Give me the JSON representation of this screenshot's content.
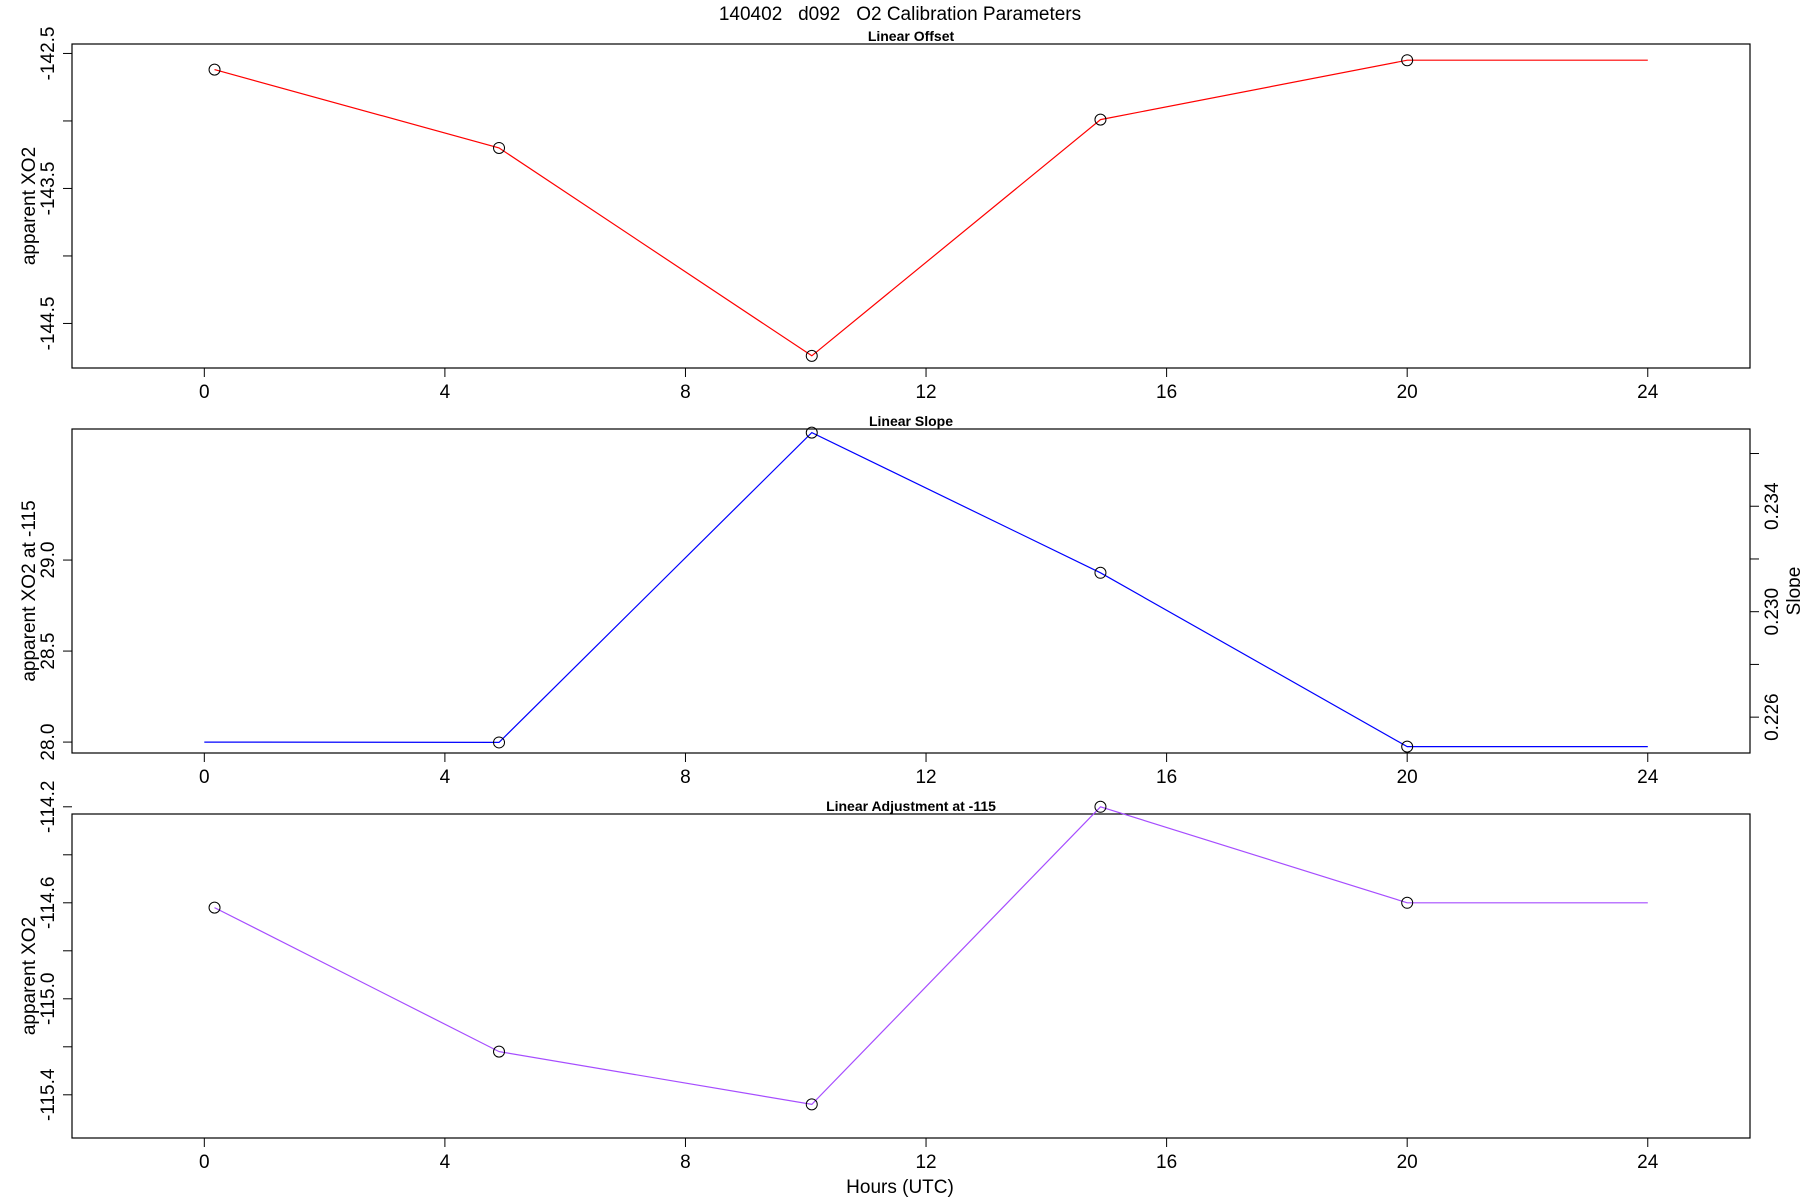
{
  "figure": {
    "title": "140402   d092   O2 Calibration Parameters",
    "xlabel": "Hours (UTC)"
  },
  "chart_data": [
    {
      "type": "line",
      "title": "Linear Offset",
      "xlabel": "",
      "ylabel": "apparent XO2",
      "xlim": [
        -2.2,
        25.7
      ],
      "ylim": [
        -144.83,
        -142.43
      ],
      "x_ticks": [
        0,
        4,
        8,
        12,
        16,
        20,
        24
      ],
      "y_ticks": [
        -142.5,
        -143.0,
        -143.5,
        -144.0,
        -144.5
      ],
      "y_tick_labels": [
        "-142.5",
        "",
        "-143.5",
        "",
        "-144.5"
      ],
      "color": "#ff0000",
      "points": [
        {
          "x": 0.17,
          "y": -142.62
        },
        {
          "x": 4.9,
          "y": -143.2
        },
        {
          "x": 10.1,
          "y": -144.74
        },
        {
          "x": 14.9,
          "y": -142.99
        },
        {
          "x": 20.0,
          "y": -142.55
        }
      ],
      "line_end": {
        "x": 24.0,
        "y": -142.55
      }
    },
    {
      "type": "line",
      "title": "Linear Slope",
      "xlabel": "",
      "ylabel": "apparent XO2 at -115",
      "y2label": "Slope",
      "xlim": [
        -2.2,
        25.7
      ],
      "ylim": [
        27.94,
        29.72
      ],
      "x_ticks": [
        0,
        4,
        8,
        12,
        16,
        20,
        24
      ],
      "y_ticks": [
        28.0,
        28.5,
        29.0
      ],
      "y_tick_labels": [
        "28.0",
        "28.5",
        "29.0"
      ],
      "y2_ticks": [
        0.226,
        0.228,
        0.23,
        0.232,
        0.234,
        0.236
      ],
      "y2_tick_labels": [
        "0.226",
        "",
        "0.230",
        "",
        "0.234",
        ""
      ],
      "y2lim": [
        0.22464,
        0.23693
      ],
      "color": "#0000ff",
      "points": [
        {
          "x": 4.9,
          "y": 27.998
        },
        {
          "x": 10.1,
          "y": 29.7
        },
        {
          "x": 14.9,
          "y": 28.93
        },
        {
          "x": 20.0,
          "y": 27.975
        }
      ],
      "line_start": {
        "x": 0.0,
        "y": 28.0
      },
      "line_end": {
        "x": 24.0,
        "y": 27.975
      }
    },
    {
      "type": "line",
      "title": "Linear Adjustment at -115",
      "xlabel": "Hours (UTC)",
      "ylabel": "apparent XO2",
      "xlim": [
        -2.2,
        25.7
      ],
      "ylim": [
        -115.58,
        -114.23
      ],
      "x_ticks": [
        0,
        4,
        8,
        12,
        16,
        20,
        24
      ],
      "y_ticks": [
        -114.2,
        -114.4,
        -114.6,
        -114.8,
        -115.0,
        -115.2,
        -115.4
      ],
      "y_tick_labels": [
        "-114.2",
        "",
        "-114.6",
        "",
        "-115.0",
        "",
        "-115.4"
      ],
      "color": "#a64dff",
      "points": [
        {
          "x": 0.17,
          "y": -114.62
        },
        {
          "x": 4.9,
          "y": -115.22
        },
        {
          "x": 10.1,
          "y": -115.44
        },
        {
          "x": 14.9,
          "y": -114.2
        },
        {
          "x": 20.0,
          "y": -114.6
        }
      ],
      "line_end": {
        "x": 24.0,
        "y": -114.6
      }
    }
  ]
}
